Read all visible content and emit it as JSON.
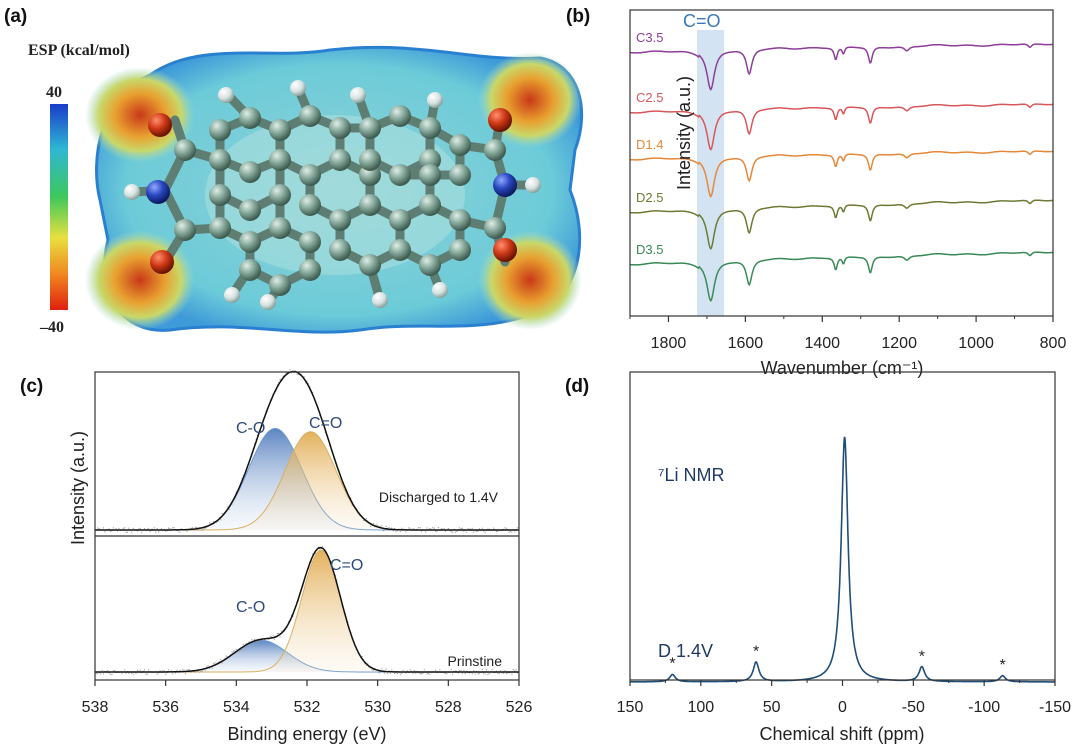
{
  "panel_labels": {
    "a": "(a)",
    "b": "(b)",
    "c": "(c)",
    "d": "(d)"
  },
  "chart_data": [
    {
      "panel": "(a)",
      "type": "other",
      "description_title": "ESP (kcal/mol)",
      "colorbar": {
        "max": "40",
        "min": "–40",
        "colors": [
          "#1a3cc9",
          "#2fb7d4",
          "#3cc85a",
          "#e8e040",
          "#f08a20",
          "#e02010"
        ]
      },
      "atom_colors": {
        "carbon": "#7a9a8c",
        "oxygen": "#c8361a",
        "nitrogen": "#2446b8",
        "hydrogen": "#e6eeee"
      }
    },
    {
      "panel": "(b)",
      "type": "line",
      "title": "",
      "xlabel": "Wavenumber (cm⁻¹)",
      "ylabel": "Intensity (a.u.)",
      "xlim": [
        1900,
        800
      ],
      "xticks": [
        "1800",
        "1600",
        "1400",
        "1200",
        "1000",
        "800"
      ],
      "highlight": {
        "label": "C=O",
        "range": [
          1730,
          1660
        ]
      },
      "series": [
        {
          "name": "C3.5",
          "color": "#8e3d9a",
          "offset": 4
        },
        {
          "name": "C2.5",
          "color": "#d9575a",
          "offset": 3
        },
        {
          "name": "D1.4",
          "color": "#e6883a",
          "offset": 2
        },
        {
          "name": "D2.5",
          "color": "#6b7c32",
          "offset": 1
        },
        {
          "name": "D3.5",
          "color": "#3a8a57",
          "offset": 0
        }
      ],
      "peaks": [
        {
          "x": 1690,
          "depth": 1.0,
          "width": 12
        },
        {
          "x": 1590,
          "depth": 0.65,
          "width": 9
        },
        {
          "x": 1365,
          "depth": 0.32,
          "width": 5
        },
        {
          "x": 1345,
          "depth": 0.18,
          "width": 4
        },
        {
          "x": 1275,
          "depth": 0.42,
          "width": 6
        },
        {
          "x": 1180,
          "depth": 0.12,
          "width": 8
        },
        {
          "x": 860,
          "depth": 0.1,
          "width": 6
        }
      ]
    },
    {
      "panel": "(c)",
      "type": "line",
      "xlabel": "Binding energy (eV)",
      "ylabel": "Intensity (a.u.)",
      "xlim": [
        538,
        526
      ],
      "xticks": [
        "538",
        "536",
        "534",
        "532",
        "530",
        "528",
        "526"
      ],
      "subplots": [
        {
          "label": "Discharged to 1.4V",
          "components": [
            {
              "name": "C-O",
              "center": 532.9,
              "amplitude": 0.62,
              "sigma": 0.75,
              "color": "#5b86c4"
            },
            {
              "name": "C=O",
              "center": 531.9,
              "amplitude": 0.6,
              "sigma": 0.72,
              "color": "#e0a84a"
            }
          ]
        },
        {
          "label": "Prinstine",
          "components": [
            {
              "name": "C-O",
              "center": 533.3,
              "amplitude": 0.26,
              "sigma": 0.75,
              "color": "#5b86c4"
            },
            {
              "name": "C=O",
              "center": 531.6,
              "amplitude": 1.0,
              "sigma": 0.55,
              "color": "#e0a84a"
            }
          ]
        }
      ]
    },
    {
      "panel": "(d)",
      "type": "line",
      "title": "⁷Li NMR",
      "series_label": "D 1.4V",
      "xlabel": "Chemical shift (ppm)",
      "xlim": [
        150,
        -150
      ],
      "xticks": [
        "150",
        "100",
        "50",
        "0",
        "-50",
        "-100",
        "-150"
      ],
      "main_peak": {
        "x": -1.5,
        "height": 1.0,
        "width": 1.8
      },
      "sidebands": [
        {
          "x": 120,
          "height": 0.03,
          "marker": "*"
        },
        {
          "x": 61,
          "height": 0.08,
          "marker": "*"
        },
        {
          "x": -56,
          "height": 0.06,
          "marker": "*"
        },
        {
          "x": -113,
          "height": 0.025,
          "marker": "*"
        }
      ],
      "color": "#1f4e79"
    }
  ]
}
